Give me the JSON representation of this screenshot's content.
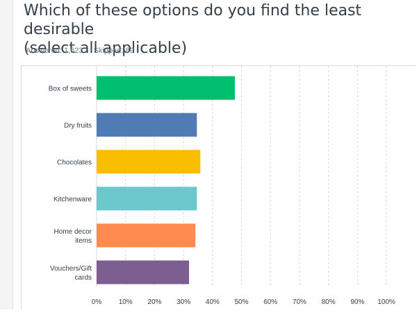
{
  "question": {
    "title": "Which of these options do you find the least desirable\n (select all applicable)",
    "answered": "Answered: 1,623",
    "skipped": "Skipped: 89"
  },
  "chart_data": {
    "type": "bar",
    "orientation": "horizontal",
    "categories": [
      "Box of sweets",
      "Dry fruits",
      "Chocolates",
      "Kitchenware",
      "Home decor items",
      "Vouchers/Gift cards"
    ],
    "category_lines": [
      [
        "Box of sweets"
      ],
      [
        "Dry fruits"
      ],
      [
        "Chocolates"
      ],
      [
        "Kitchenware"
      ],
      [
        "Home decor",
        "items"
      ],
      [
        "Vouchers/Gift",
        "cards"
      ]
    ],
    "values": [
      47.7,
      34.6,
      35.8,
      34.6,
      34.1,
      31.9
    ],
    "colors": [
      "#00bf6f",
      "#507cb6",
      "#f9be00",
      "#6bc8cd",
      "#ff8b4f",
      "#7d5e90"
    ],
    "ticks": [
      "0%",
      "10%",
      "20%",
      "30%",
      "40%",
      "50%",
      "60%",
      "70%",
      "80%",
      "90%",
      "100%"
    ],
    "xlim": [
      0,
      100
    ],
    "grid": "vertical dashed",
    "legend": "none"
  }
}
